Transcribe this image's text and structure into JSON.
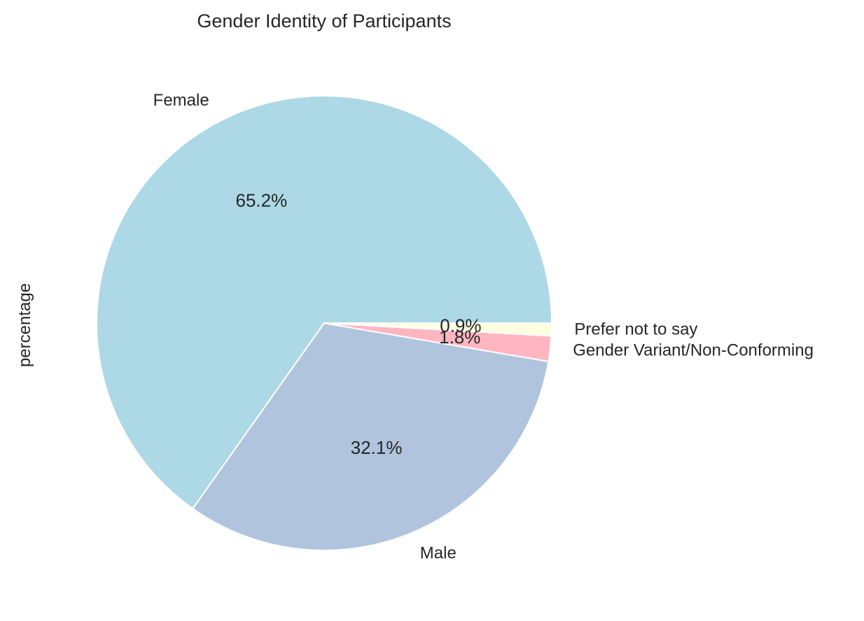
{
  "chart_data": {
    "type": "pie",
    "title": "Gender Identity of Participants",
    "ylabel": "percentage",
    "categories": [
      "Female",
      "Male",
      "Gender Variant/Non-Conforming",
      "Prefer not to say"
    ],
    "values": [
      65.2,
      32.1,
      1.8,
      0.9
    ],
    "value_labels": [
      "65.2%",
      "32.1%",
      "1.8%",
      "0.9%"
    ],
    "colors": [
      "#add8e6",
      "#b0c4de",
      "#ffb6c1",
      "#ffffe0"
    ],
    "start_angle_deg": 0,
    "direction": "counterclockwise",
    "legend": "none"
  }
}
